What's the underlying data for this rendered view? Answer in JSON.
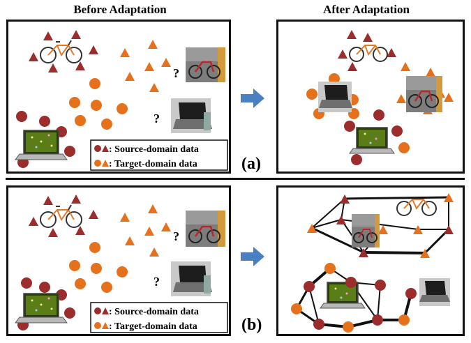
{
  "headings": {
    "before": "Before Adaptation",
    "after": "After Adaptation"
  },
  "labels": {
    "a": "(a)",
    "b": "(b)"
  },
  "legend": {
    "source": ": Source-domain data",
    "target": ": Target-domain data"
  },
  "unknown_mark": "?",
  "colors": {
    "source": "#9b2d2d",
    "target": "#e5711c",
    "arrow": "#4a7fc1",
    "border": "#111111"
  },
  "icons": {
    "bicycle": "bicycle-icon",
    "laptop": "laptop-icon",
    "bike_photo": "bicycle-photo",
    "laptop_photo": "laptop-photo"
  }
}
